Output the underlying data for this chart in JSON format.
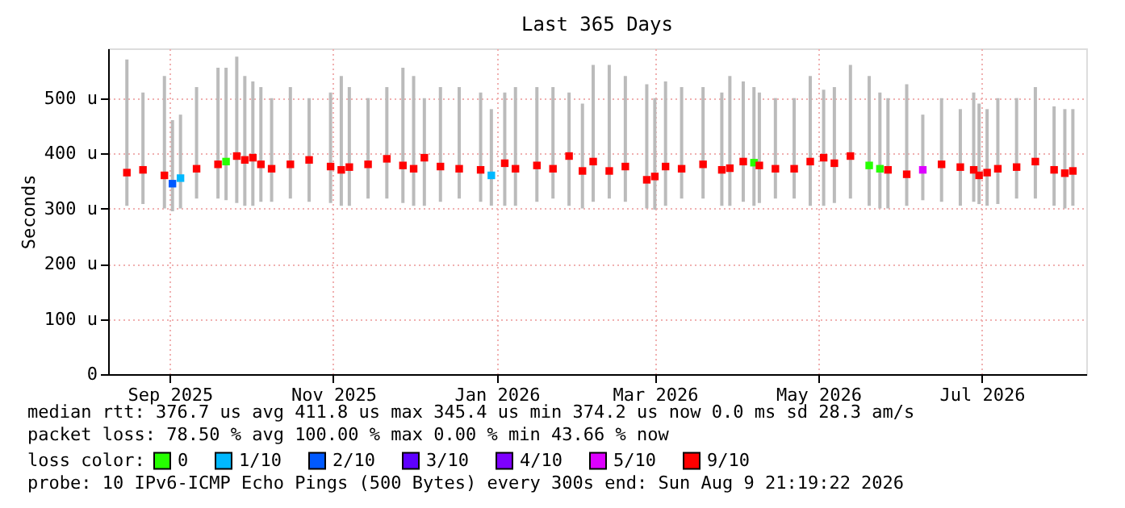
{
  "chart_data": {
    "type": "scatter",
    "title": "Last 365 Days",
    "ylabel": "Seconds",
    "legend_title": "loss color:",
    "legend": "bottom",
    "grid": true,
    "marker": "square",
    "xlim": [
      "2025-08-09",
      "2026-08-09"
    ],
    "xticks": [
      {
        "value": "2025-09-01",
        "label": "Sep 2025"
      },
      {
        "value": "2025-11-01",
        "label": "Nov 2025"
      },
      {
        "value": "2026-01-01",
        "label": "Jan 2026"
      },
      {
        "value": "2026-03-01",
        "label": "Mar 2026"
      },
      {
        "value": "2026-05-01",
        "label": "May 2026"
      },
      {
        "value": "2026-07-01",
        "label": "Jul 2026"
      }
    ],
    "ylim": [
      0,
      590
    ],
    "yticks": [
      {
        "value": 0,
        "label": "0"
      },
      {
        "value": 100,
        "label": "100 u"
      },
      {
        "value": 200,
        "label": "200 u"
      },
      {
        "value": 300,
        "label": "300 u"
      },
      {
        "value": 400,
        "label": "400 u"
      },
      {
        "value": 500,
        "label": "500 u"
      }
    ],
    "series": [
      {
        "name": "0",
        "color": "#26ff00",
        "x": [
          "2025-09-22",
          "2026-04-07",
          "2026-05-20",
          "2026-05-24"
        ],
        "values": [
          385,
          383,
          378,
          372
        ],
        "errors": [
          [
            315,
            555
          ],
          [
            305,
            520
          ],
          [
            305,
            540
          ],
          [
            300,
            510
          ]
        ]
      },
      {
        "name": "1/10",
        "color": "#00b8ff",
        "x": [
          "2025-09-05",
          "2025-12-30"
        ],
        "values": [
          355,
          360
        ],
        "errors": [
          [
            300,
            470
          ],
          [
            305,
            480
          ]
        ]
      },
      {
        "name": "2/10",
        "color": "#0059ff",
        "x": [
          "2025-09-02"
        ],
        "values": [
          345
        ],
        "errors": [
          [
            295,
            460
          ]
        ]
      },
      {
        "name": "3/10",
        "color": "#5e00ff"
      },
      {
        "name": "4/10",
        "color": "#7e00ff"
      },
      {
        "name": "5/10",
        "color": "#dd00ff",
        "x": [
          "2026-06-09"
        ],
        "values": [
          370
        ],
        "errors": [
          [
            315,
            470
          ]
        ]
      },
      {
        "name": "9/10",
        "color": "#ff0000",
        "x": [
          "2025-08-16",
          "2025-08-22",
          "2025-08-30",
          "2025-09-11",
          "2025-09-19",
          "2025-09-26",
          "2025-09-29",
          "2025-10-02",
          "2025-10-05",
          "2025-10-09",
          "2025-10-16",
          "2025-10-23",
          "2025-10-31",
          "2025-11-04",
          "2025-11-07",
          "2025-11-14",
          "2025-11-21",
          "2025-11-27",
          "2025-12-01",
          "2025-12-05",
          "2025-12-11",
          "2025-12-18",
          "2025-12-26",
          "2026-01-04",
          "2026-01-08",
          "2026-01-16",
          "2026-01-22",
          "2026-01-28",
          "2026-02-02",
          "2026-02-06",
          "2026-02-12",
          "2026-02-18",
          "2026-02-26",
          "2026-03-01",
          "2026-03-05",
          "2026-03-11",
          "2026-03-19",
          "2026-03-26",
          "2026-03-29",
          "2026-04-03",
          "2026-04-09",
          "2026-04-15",
          "2026-04-22",
          "2026-04-28",
          "2026-05-03",
          "2026-05-07",
          "2026-05-13",
          "2026-05-27",
          "2026-06-03",
          "2026-06-16",
          "2026-06-23",
          "2026-06-28",
          "2026-06-30",
          "2026-07-03",
          "2026-07-07",
          "2026-07-14",
          "2026-07-21",
          "2026-07-28",
          "2026-08-01",
          "2026-08-04"
        ],
        "values": [
          365,
          370,
          360,
          372,
          380,
          395,
          388,
          392,
          380,
          372,
          380,
          388,
          376,
          370,
          375,
          380,
          390,
          378,
          372,
          392,
          376,
          372,
          370,
          382,
          372,
          378,
          372,
          395,
          368,
          385,
          368,
          376,
          352,
          358,
          376,
          372,
          380,
          370,
          373,
          385,
          378,
          372,
          372,
          385,
          392,
          382,
          395,
          370,
          362,
          380,
          375,
          370,
          360,
          365,
          372,
          375,
          385,
          370,
          364,
          368
        ],
        "errors": [
          [
            305,
            570
          ],
          [
            308,
            510
          ],
          [
            300,
            540
          ],
          [
            318,
            520
          ],
          [
            318,
            555
          ],
          [
            310,
            575
          ],
          [
            305,
            540
          ],
          [
            305,
            530
          ],
          [
            312,
            520
          ],
          [
            312,
            500
          ],
          [
            318,
            520
          ],
          [
            312,
            500
          ],
          [
            310,
            510
          ],
          [
            305,
            540
          ],
          [
            305,
            520
          ],
          [
            318,
            500
          ],
          [
            318,
            520
          ],
          [
            310,
            555
          ],
          [
            305,
            540
          ],
          [
            305,
            500
          ],
          [
            312,
            520
          ],
          [
            318,
            520
          ],
          [
            312,
            510
          ],
          [
            305,
            510
          ],
          [
            305,
            520
          ],
          [
            312,
            520
          ],
          [
            318,
            520
          ],
          [
            305,
            510
          ],
          [
            300,
            490
          ],
          [
            312,
            560
          ],
          [
            318,
            560
          ],
          [
            312,
            540
          ],
          [
            300,
            525
          ],
          [
            298,
            500
          ],
          [
            305,
            530
          ],
          [
            318,
            520
          ],
          [
            318,
            520
          ],
          [
            305,
            510
          ],
          [
            305,
            540
          ],
          [
            312,
            530
          ],
          [
            310,
            510
          ],
          [
            318,
            500
          ],
          [
            318,
            500
          ],
          [
            305,
            540
          ],
          [
            305,
            515
          ],
          [
            310,
            520
          ],
          [
            318,
            560
          ],
          [
            300,
            500
          ],
          [
            305,
            525
          ],
          [
            312,
            500
          ],
          [
            305,
            480
          ],
          [
            312,
            510
          ],
          [
            308,
            490
          ],
          [
            305,
            480
          ],
          [
            308,
            500
          ],
          [
            318,
            500
          ],
          [
            318,
            520
          ],
          [
            305,
            485
          ],
          [
            300,
            480
          ],
          [
            305,
            480
          ]
        ]
      }
    ],
    "annotations": [
      "median rtt:  376.7 us avg   411.8 us max   345.4 us min   374.2 us now   0.0 ms sd   28.3   am/s",
      "packet loss: 78.50 % avg   100.00 % max   0.00 % min   43.66 % now",
      "probe:       10 IPv6-ICMP Echo Pings (500 Bytes) every 300s      end: Sun Aug  9 21:19:22 2026"
    ]
  }
}
